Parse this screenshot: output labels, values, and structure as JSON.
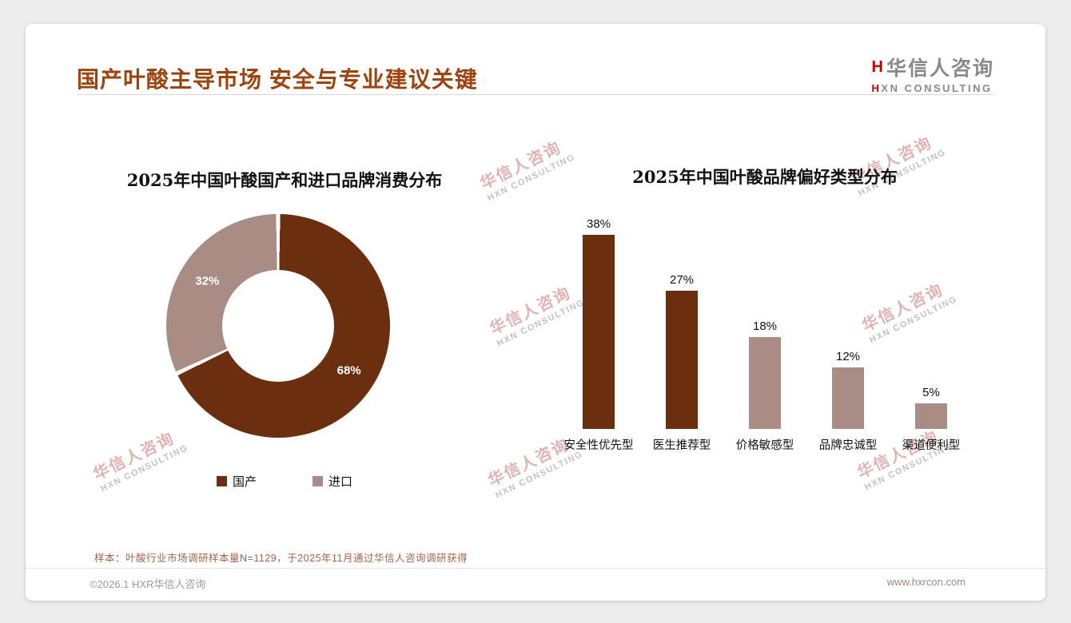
{
  "page": {
    "title": "国产叶酸主导市场 安全与专业建议关键",
    "footnote": "样本：叶酸行业市场调研样本量N=1129，于2025年11月通过华信人咨询调研获得",
    "copyright": "©2026.1 HXR华信人咨询",
    "website": "www.hxrcon.com"
  },
  "logo": {
    "mark": "H",
    "cn": "华信人咨询",
    "en_h": "H",
    "en_rest": "XN CONSULTING"
  },
  "watermark": {
    "cn": "华信人咨询",
    "en": "HXN CONSULTING"
  },
  "colors": {
    "primary_brown": "#6b2f10",
    "secondary_mauve": "#a98c85",
    "title_brown": "#9e430e"
  },
  "chart_data": [
    {
      "type": "pie",
      "title": "2025年中国叶酸国产和进口品牌消费分布",
      "labels": [
        "国产",
        "进口"
      ],
      "values": [
        68,
        32
      ],
      "colors": [
        "#6b2f10",
        "#a98c85"
      ],
      "donut": true,
      "data_labels": [
        "68%",
        "32%"
      ],
      "legend_position": "bottom"
    },
    {
      "type": "bar",
      "title": "2025年中国叶酸品牌偏好类型分布",
      "categories": [
        "安全性优先型",
        "医生推荐型",
        "价格敏感型",
        "品牌忠诚型",
        "渠道便利型"
      ],
      "values": [
        38,
        27,
        18,
        12,
        5
      ],
      "colors": [
        "#6b2f10",
        "#6b2f10",
        "#a98c85",
        "#a98c85",
        "#a98c85"
      ],
      "ylim": [
        0,
        40
      ],
      "grid": false,
      "value_label_format": "percent"
    }
  ]
}
